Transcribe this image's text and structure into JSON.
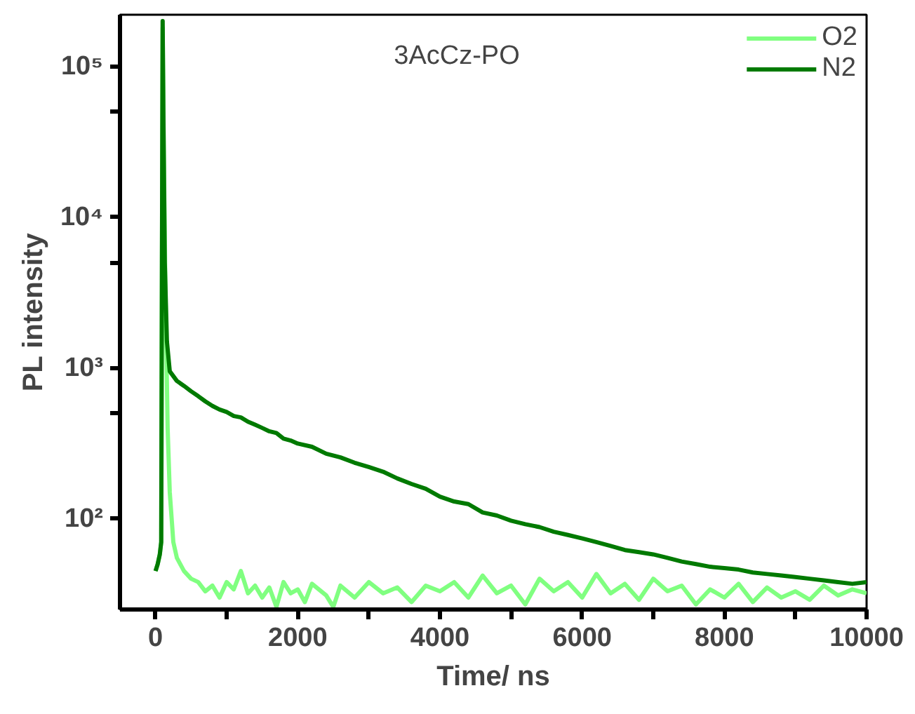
{
  "chart_data": {
    "type": "line",
    "title": "3AcCz-PO",
    "xlabel": "Time/ ns",
    "ylabel": "PL intensity",
    "log": "y",
    "legend": "top right",
    "grid": false,
    "line_style": "solid",
    "marker": "none",
    "xlim": [
      -500,
      10000
    ],
    "xticks": [
      0,
      {
        "value": 1000,
        "label": null
      },
      2000,
      {
        "value": 3000,
        "label": null
      },
      4000,
      {
        "value": 5000,
        "label": null
      },
      6000,
      {
        "value": 7000,
        "label": null
      },
      8000,
      {
        "value": 9000,
        "label": null
      },
      10000
    ],
    "ylim": [
      25,
      220000
    ],
    "yticks": [
      {
        "value": 100,
        "label": "10²"
      },
      {
        "value": 500,
        "label": null
      },
      {
        "value": 1000,
        "label": "10³"
      },
      {
        "value": 5000,
        "label": null
      },
      {
        "value": 10000,
        "label": "10⁴"
      },
      {
        "value": 50000,
        "label": null
      },
      {
        "value": 100000,
        "label": "10⁵"
      }
    ],
    "series": [
      {
        "name": "O2",
        "color": "#80ff80",
        "x": [
          0,
          30,
          60,
          80,
          90,
          100,
          115,
          140,
          170,
          200,
          250,
          300,
          400,
          500,
          600,
          700,
          800,
          900,
          1000,
          1100,
          1200,
          1300,
          1400,
          1500,
          1600,
          1700,
          1800,
          1900,
          2000,
          2100,
          2200,
          2400,
          2500,
          2600,
          2800,
          3000,
          3200,
          3400,
          3600,
          3800,
          4000,
          4200,
          4400,
          4600,
          4800,
          5000,
          5200,
          5400,
          5600,
          5800,
          6000,
          6200,
          6400,
          6600,
          6800,
          7000,
          7200,
          7400,
          7600,
          7800,
          8000,
          8200,
          8400,
          8600,
          8800,
          9000,
          9200,
          9400,
          9600,
          9800,
          10000
        ],
        "values": [
          45,
          50,
          58,
          70,
          5000,
          180000,
          30000,
          3000,
          400,
          150,
          70,
          55,
          45,
          40,
          38,
          33,
          36,
          30,
          38,
          34,
          45,
          32,
          36,
          30,
          35,
          26,
          38,
          32,
          34,
          28,
          37,
          31,
          26,
          36,
          30,
          38,
          32,
          35,
          28,
          36,
          33,
          38,
          30,
          42,
          32,
          36,
          27,
          40,
          33,
          38,
          30,
          43,
          32,
          37,
          29,
          40,
          33,
          36,
          27,
          34,
          30,
          37,
          28,
          35,
          30,
          33,
          29,
          36,
          31,
          34,
          32
        ]
      },
      {
        "name": "N2",
        "color": "#007a00",
        "x": [
          0,
          30,
          60,
          80,
          90,
          100,
          110,
          130,
          160,
          200,
          300,
          400,
          500,
          600,
          700,
          800,
          900,
          1000,
          1100,
          1200,
          1300,
          1400,
          1500,
          1600,
          1700,
          1800,
          1900,
          2000,
          2200,
          2400,
          2600,
          2800,
          3000,
          3200,
          3400,
          3600,
          3800,
          4000,
          4200,
          4400,
          4600,
          4800,
          5000,
          5200,
          5400,
          5600,
          5800,
          6000,
          6200,
          6400,
          6600,
          6800,
          7000,
          7200,
          7400,
          7600,
          7800,
          8000,
          8200,
          8400,
          8600,
          8800,
          9000,
          9200,
          9400,
          9600,
          9800,
          10000
        ],
        "values": [
          45,
          50,
          58,
          70,
          5000,
          200000,
          50000,
          5000,
          1500,
          950,
          820,
          760,
          700,
          650,
          600,
          560,
          530,
          510,
          480,
          470,
          440,
          420,
          400,
          380,
          370,
          340,
          330,
          315,
          300,
          270,
          255,
          235,
          220,
          205,
          185,
          170,
          158,
          140,
          130,
          125,
          110,
          105,
          97,
          92,
          88,
          82,
          78,
          74,
          70,
          66,
          62,
          60,
          58,
          55,
          52,
          50,
          48,
          47,
          46,
          44,
          43,
          42,
          41,
          40,
          39,
          38,
          37,
          38
        ]
      }
    ]
  }
}
